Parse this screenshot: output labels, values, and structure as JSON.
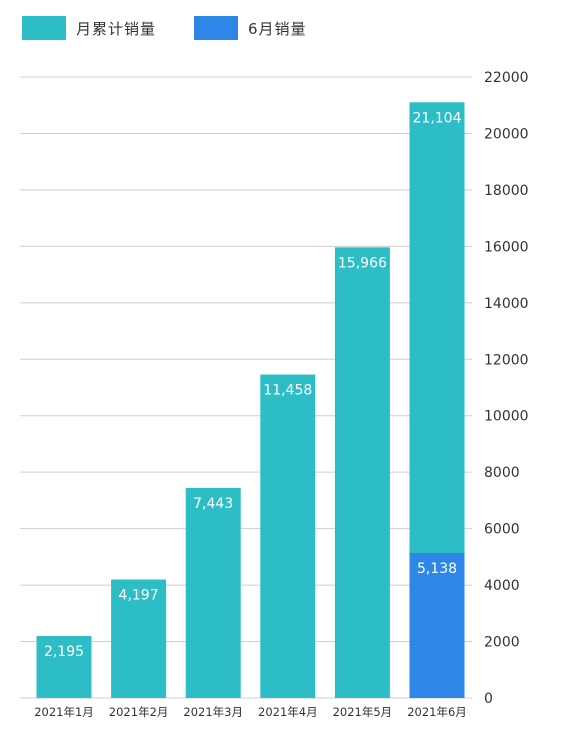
{
  "chart_data": {
    "type": "bar",
    "categories": [
      "2021年1月",
      "2021年2月",
      "2021年3月",
      "2021年4月",
      "2021年5月",
      "2021年6月"
    ],
    "series": [
      {
        "name": "月累计销量",
        "values": [
          2195,
          4197,
          7443,
          11458,
          15966,
          21104
        ],
        "labels": [
          "2,195",
          "4,197",
          "7,443",
          "11,458",
          "15,966",
          "21,104"
        ],
        "color": "#2dbdc6"
      },
      {
        "name": "6月销量",
        "values": [
          null,
          null,
          null,
          null,
          null,
          5138
        ],
        "labels": [
          null,
          null,
          null,
          null,
          null,
          "5,138"
        ],
        "color": "#2e87e6"
      }
    ],
    "overlay": true,
    "y_ticks": [
      "0",
      "2000",
      "4000",
      "6000",
      "8000",
      "10000",
      "12000",
      "14000",
      "16000",
      "18000",
      "20000",
      "22000"
    ],
    "ylim": [
      0,
      22000
    ],
    "y_axis_side": "right",
    "grid": true,
    "gridline_color": "#cfcfcf",
    "legend_position": "top-left",
    "title": "",
    "xlabel": "",
    "ylabel": ""
  }
}
